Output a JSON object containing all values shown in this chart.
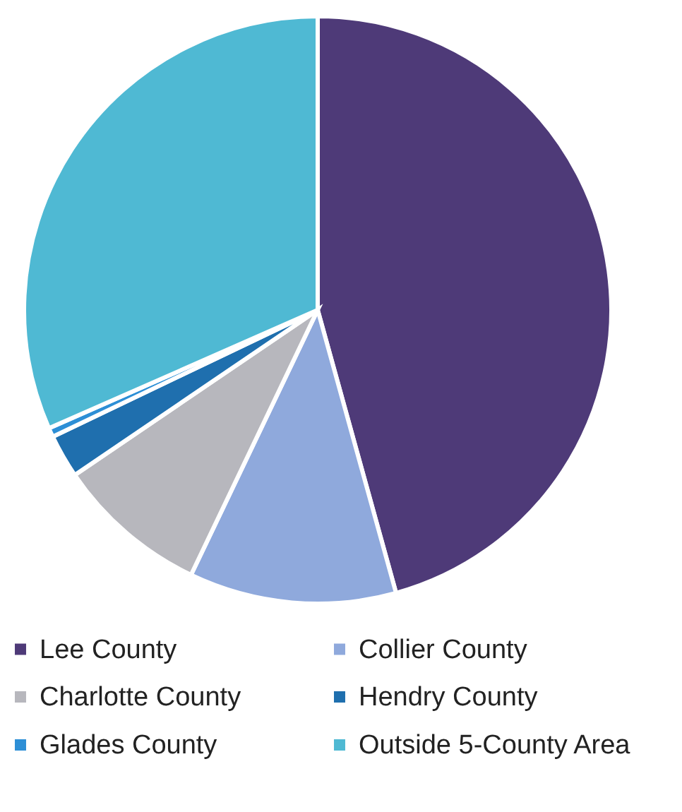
{
  "chart_data": {
    "type": "pie",
    "categories": [
      "Lee County",
      "Collier County",
      "Charlotte County",
      "Hendry County",
      "Glades County",
      "Outside 5-County Area"
    ],
    "values": [
      45.7,
      11.4,
      8.4,
      2.4,
      0.5,
      31.6
    ],
    "colors": [
      "#4e3a78",
      "#8fa9dc",
      "#b7b7bd",
      "#1f6fae",
      "#2d8fd6",
      "#4fb9d3"
    ],
    "legend": "bottom"
  }
}
